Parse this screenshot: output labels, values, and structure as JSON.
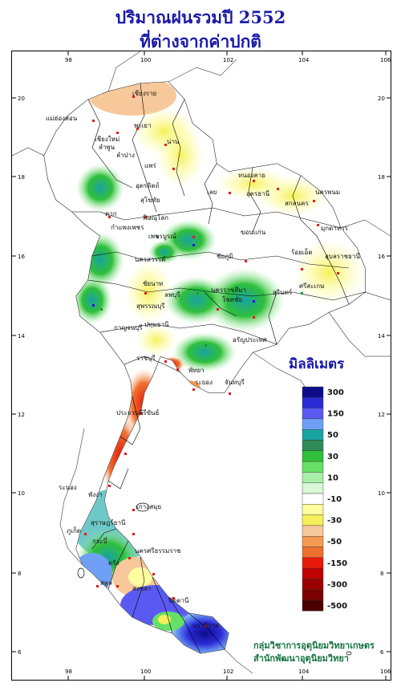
{
  "title": {
    "line1": "ปริมาณฝนรวมปี  2552",
    "line2": "ที่ต่างจากค่าปกติ"
  },
  "axes": {
    "lon_ticks": [
      "98",
      "100",
      "102",
      "104",
      "106"
    ],
    "lat_ticks": [
      "20",
      "18",
      "16",
      "14",
      "12",
      "10",
      "8",
      "6"
    ]
  },
  "legend": {
    "title": "มิลลิเมตร",
    "classes": [
      {
        "label": "300",
        "color": "#0d0d8c"
      },
      {
        "label": "",
        "color": "#2a2ad6"
      },
      {
        "label": "150",
        "color": "#5a5af2"
      },
      {
        "label": "",
        "color": "#6fa0f5"
      },
      {
        "label": "50",
        "color": "#1aa3a3"
      },
      {
        "label": "",
        "color": "#2e8b57"
      },
      {
        "label": "30",
        "color": "#2fbf3a"
      },
      {
        "label": "",
        "color": "#66e066"
      },
      {
        "label": "10",
        "color": "#a8f0a8"
      },
      {
        "label": "",
        "color": "#d8f8d8"
      },
      {
        "label": "-10",
        "color": "#ffffff"
      },
      {
        "label": "",
        "color": "#ffffa0"
      },
      {
        "label": "-30",
        "color": "#f5f05a"
      },
      {
        "label": "",
        "color": "#f6c89a"
      },
      {
        "label": "-50",
        "color": "#f59a55"
      },
      {
        "label": "",
        "color": "#f07030"
      },
      {
        "label": "-150",
        "color": "#e81a0a"
      },
      {
        "label": "",
        "color": "#c00000"
      },
      {
        "label": "-300",
        "color": "#9a0000"
      },
      {
        "label": "",
        "color": "#7a0000"
      },
      {
        "label": "-500",
        "color": "#4a0000"
      }
    ]
  },
  "provinces": [
    "เชียงราย",
    "แม่ฮ่องสอน",
    "เชียงใหม่",
    "ลำพูน",
    "พะเยา",
    "น่าน",
    "ลำปาง",
    "แพร่",
    "อุตรดิตถ์",
    "ตาก",
    "พิษณุโลก",
    "สุโขทัย",
    "กำแพงเพชร",
    "หนองคาย",
    "อุดรธานี",
    "นครพนม",
    "เลย",
    "สกลนคร",
    "มุกดาหาร",
    "ขอนแก่น",
    "ชัยภูมิ",
    "นครสวรรค์",
    "ร้อยเอ็ด",
    "อุบลราชธานี",
    "ชัยนาท",
    "ลพบุรี",
    "นครราชสีมา",
    "โชคชัย",
    "สุรินทร์",
    "ศรีสะเกษ",
    "สุพรรณบุรี",
    "กาญจนบุรี",
    "ปทุมธานี",
    "อรัญประเทศ",
    "ราชบุรี",
    "พัทยา",
    "ระยอง",
    "จันทบุรี",
    "ประจวบคีรีขันธ์",
    "ระนอง",
    "เกาะสมุย",
    "สุราษฎร์ธานี",
    "นครศรีธรรมราช",
    "ภูเก็ต",
    "กระบี่",
    "ตรัง",
    "สงขลา",
    "ปัตตานี",
    "นราธิวาส",
    "สตูล",
    "พังงา",
    "เพชรบูรณ์"
  ],
  "credits": {
    "line1": "กลุ่มวิชาการอุตุนิยมวิทยาเกษตร",
    "line2": "สำนักพัฒนาอุตุนิยมวิทยา"
  }
}
